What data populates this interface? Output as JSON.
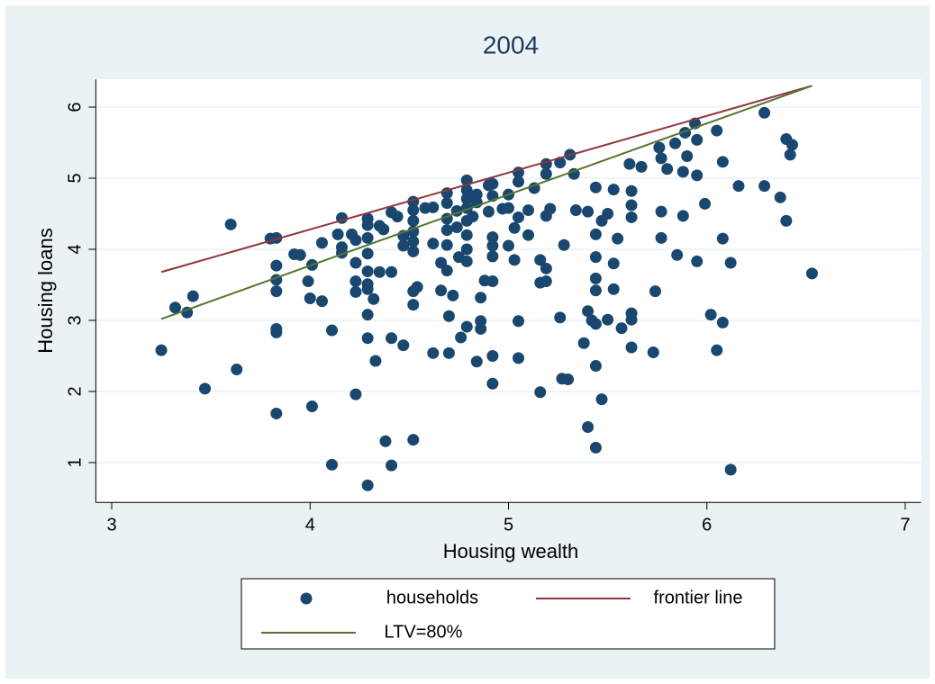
{
  "chart_data": {
    "type": "scatter",
    "title": "2004",
    "x_label": "Housing wealth",
    "y_label": "Housing loans",
    "xlim": [
      2.92,
      7.08
    ],
    "ylim": [
      0.44,
      6.39
    ],
    "xticks": [
      3,
      4,
      5,
      6,
      7
    ],
    "yticks": [
      1,
      2,
      3,
      4,
      5,
      6
    ],
    "grid": true,
    "series": [
      {
        "name": "households",
        "type": "scatter",
        "color": "#1a476f",
        "x": [
          3.25,
          3.32,
          3.38,
          3.41,
          3.47,
          3.6,
          3.63,
          3.8,
          3.83,
          3.83,
          3.83,
          3.83,
          3.83,
          3.83,
          3.83,
          3.92,
          3.95,
          3.99,
          4.0,
          4.01,
          4.01,
          4.06,
          4.06,
          4.11,
          4.11,
          4.14,
          4.16,
          4.16,
          4.16,
          4.21,
          4.23,
          4.23,
          4.23,
          4.23,
          4.23,
          4.29,
          4.29,
          4.29,
          4.29,
          4.29,
          4.29,
          4.29,
          4.29,
          4.29,
          4.29,
          4.32,
          4.33,
          4.35,
          4.35,
          4.37,
          4.38,
          4.41,
          4.41,
          4.41,
          4.41,
          4.44,
          4.47,
          4.47,
          4.47,
          4.52,
          4.52,
          4.52,
          4.52,
          4.52,
          4.52,
          4.52,
          4.52,
          4.52,
          4.54,
          4.58,
          4.62,
          4.62,
          4.62,
          4.66,
          4.66,
          4.69,
          4.69,
          4.69,
          4.69,
          4.69,
          4.69,
          4.7,
          4.7,
          4.72,
          4.74,
          4.74,
          4.75,
          4.76,
          4.79,
          4.79,
          4.79,
          4.79,
          4.79,
          4.79,
          4.79,
          4.79,
          4.79,
          4.82,
          4.84,
          4.84,
          4.84,
          4.86,
          4.86,
          4.86,
          4.88,
          4.9,
          4.9,
          4.92,
          4.92,
          4.92,
          4.92,
          4.92,
          4.92,
          4.92,
          4.92,
          4.97,
          5.0,
          5.0,
          5.0,
          5.03,
          5.03,
          5.05,
          5.05,
          5.05,
          5.05,
          5.05,
          5.1,
          5.1,
          5.13,
          5.16,
          5.16,
          5.16,
          5.19,
          5.19,
          5.19,
          5.19,
          5.19,
          5.21,
          5.26,
          5.26,
          5.27,
          5.28,
          5.3,
          5.31,
          5.33,
          5.34,
          5.38,
          5.4,
          5.4,
          5.4,
          5.42,
          5.44,
          5.44,
          5.44,
          5.44,
          5.44,
          5.44,
          5.44,
          5.44,
          5.47,
          5.47,
          5.5,
          5.5,
          5.53,
          5.53,
          5.53,
          5.55,
          5.57,
          5.61,
          5.62,
          5.62,
          5.62,
          5.62,
          5.62,
          5.62,
          5.67,
          5.73,
          5.74,
          5.76,
          5.77,
          5.77,
          5.77,
          5.8,
          5.84,
          5.85,
          5.88,
          5.88,
          5.89,
          5.9,
          5.94,
          5.95,
          5.95,
          5.95,
          5.99,
          6.02,
          6.05,
          6.05,
          6.08,
          6.08,
          6.08,
          6.12,
          6.12,
          6.16,
          6.29,
          6.29,
          6.37,
          6.4,
          6.4,
          6.42,
          6.43,
          6.53
        ],
        "values": [
          2.58,
          3.18,
          3.11,
          3.34,
          2.04,
          4.35,
          2.31,
          4.15,
          4.16,
          3.77,
          3.57,
          3.41,
          2.88,
          2.83,
          1.69,
          3.93,
          3.92,
          3.55,
          3.31,
          3.78,
          1.79,
          3.27,
          4.09,
          2.86,
          0.97,
          4.21,
          4.44,
          4.03,
          3.95,
          4.21,
          4.13,
          3.81,
          3.55,
          3.4,
          1.96,
          4.43,
          4.34,
          4.16,
          3.94,
          3.69,
          3.51,
          3.44,
          3.08,
          2.75,
          0.68,
          3.3,
          2.43,
          4.33,
          3.68,
          4.28,
          1.3,
          4.52,
          3.68,
          2.75,
          0.96,
          4.46,
          4.19,
          4.05,
          2.65,
          4.67,
          4.55,
          4.4,
          4.25,
          4.11,
          3.97,
          3.41,
          3.22,
          1.32,
          3.47,
          4.58,
          4.59,
          4.08,
          2.54,
          3.42,
          3.81,
          4.79,
          4.65,
          4.43,
          4.27,
          4.06,
          3.7,
          3.06,
          2.54,
          3.35,
          4.54,
          4.31,
          3.89,
          2.76,
          4.97,
          4.83,
          4.71,
          4.58,
          4.4,
          4.2,
          4.0,
          3.83,
          2.91,
          4.46,
          4.77,
          4.66,
          2.42,
          3.32,
          2.99,
          2.88,
          3.56,
          4.9,
          4.53,
          4.92,
          4.75,
          4.17,
          4.05,
          3.9,
          3.55,
          2.5,
          2.11,
          4.57,
          4.77,
          4.58,
          4.05,
          4.3,
          3.85,
          5.08,
          4.95,
          4.45,
          2.99,
          2.47,
          4.55,
          4.2,
          4.86,
          3.85,
          3.53,
          1.99,
          5.2,
          5.06,
          4.47,
          3.73,
          3.55,
          4.57,
          5.22,
          3.04,
          2.18,
          4.06,
          2.17,
          5.33,
          5.06,
          4.55,
          2.68,
          4.53,
          3.13,
          1.5,
          3.0,
          4.87,
          4.21,
          3.89,
          3.59,
          3.42,
          2.95,
          2.36,
          1.21,
          4.4,
          1.89,
          4.5,
          3.01,
          4.84,
          3.8,
          3.44,
          4.15,
          2.89,
          5.2,
          4.82,
          4.62,
          4.45,
          3.1,
          3.01,
          2.62,
          5.16,
          2.55,
          3.41,
          5.43,
          5.28,
          4.53,
          4.16,
          5.13,
          5.49,
          3.92,
          5.09,
          4.47,
          5.64,
          5.31,
          5.77,
          5.54,
          5.04,
          3.83,
          4.64,
          3.08,
          5.67,
          2.58,
          5.23,
          4.15,
          2.97,
          3.81,
          0.9,
          4.89,
          5.92,
          4.89,
          4.73,
          5.55,
          4.4,
          5.33,
          5.47,
          3.66
        ]
      },
      {
        "name": "frontier line",
        "type": "line",
        "color": "#90353b",
        "x": [
          3.25,
          6.53
        ],
        "values": [
          3.68,
          6.3
        ]
      },
      {
        "name": "LTV=80%",
        "type": "line",
        "color": "#55752f",
        "x": [
          3.25,
          6.53
        ],
        "values": [
          3.02,
          6.3
        ]
      }
    ]
  }
}
